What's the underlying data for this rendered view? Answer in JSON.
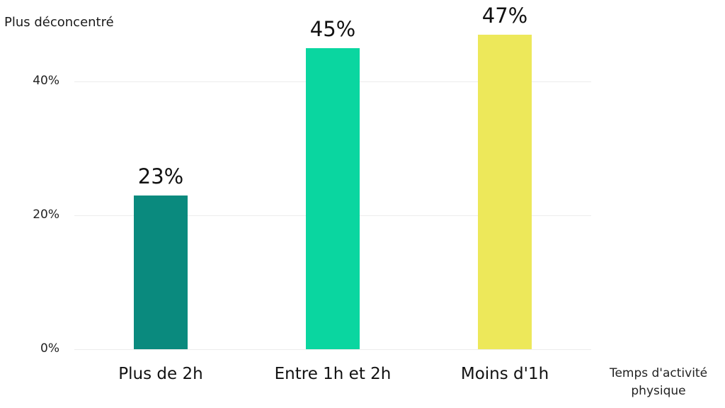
{
  "chart_data": {
    "type": "bar",
    "title": "",
    "ylabel": "Plus déconcentré",
    "xlabel": "Temps d'activité physique",
    "xlabel_lines": [
      "Temps d'activité",
      "physique"
    ],
    "categories": [
      "Plus de 2h",
      "Entre 1h et 2h",
      "Moins d'1h"
    ],
    "values": [
      23,
      45,
      47
    ],
    "value_labels": [
      "23%",
      "45%",
      "47%"
    ],
    "colors": [
      "#0a8a7e",
      "#0ad6a0",
      "#ede85a"
    ],
    "yticks": [
      "0%",
      "20%",
      "40%"
    ],
    "ylim": [
      0,
      50
    ],
    "grid": true,
    "legend": "none"
  }
}
